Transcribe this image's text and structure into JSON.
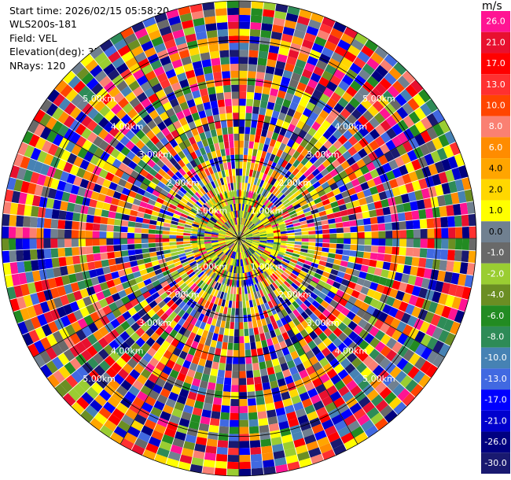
{
  "header": {
    "start_time": "Start time: 2026/02/15 05:58:20",
    "site": "WLS200s-181",
    "field": "Field: VEL",
    "elevation": "Elevation(deg): 35.00",
    "nrays": "NRays: 120"
  },
  "chart_data": {
    "type": "ppi",
    "field": "VEL",
    "rays": 120,
    "max_range_km": 6,
    "range_ring_labels": [
      "1.00km",
      "2.00km",
      "3.00km",
      "4.00km",
      "5.00km"
    ],
    "colorbar": {
      "unit": "m/s",
      "ticks": [
        "26.0",
        "21.0",
        "17.0",
        "13.0",
        "10.0",
        "8.0",
        "6.0",
        "4.0",
        "2.0",
        "1.0",
        "0.0",
        "-1.0",
        "-2.0",
        "-4.0",
        "-6.0",
        "-8.0",
        "-10.0",
        "-13.0",
        "-17.0",
        "-21.0",
        "-26.0",
        "-30.0"
      ],
      "colors": [
        "#ff1493",
        "#e8102f",
        "#ff0000",
        "#ff3030",
        "#ff4500",
        "#fa8072",
        "#ff8c00",
        "#ffa500",
        "#ffd700",
        "#ffff00",
        "#708090",
        "#696969",
        "#9acd32",
        "#6b8e23",
        "#228b22",
        "#2e8b57",
        "#4682b4",
        "#4169e1",
        "#0000ff",
        "#0000cd",
        "#000080",
        "#191970"
      ]
    }
  }
}
